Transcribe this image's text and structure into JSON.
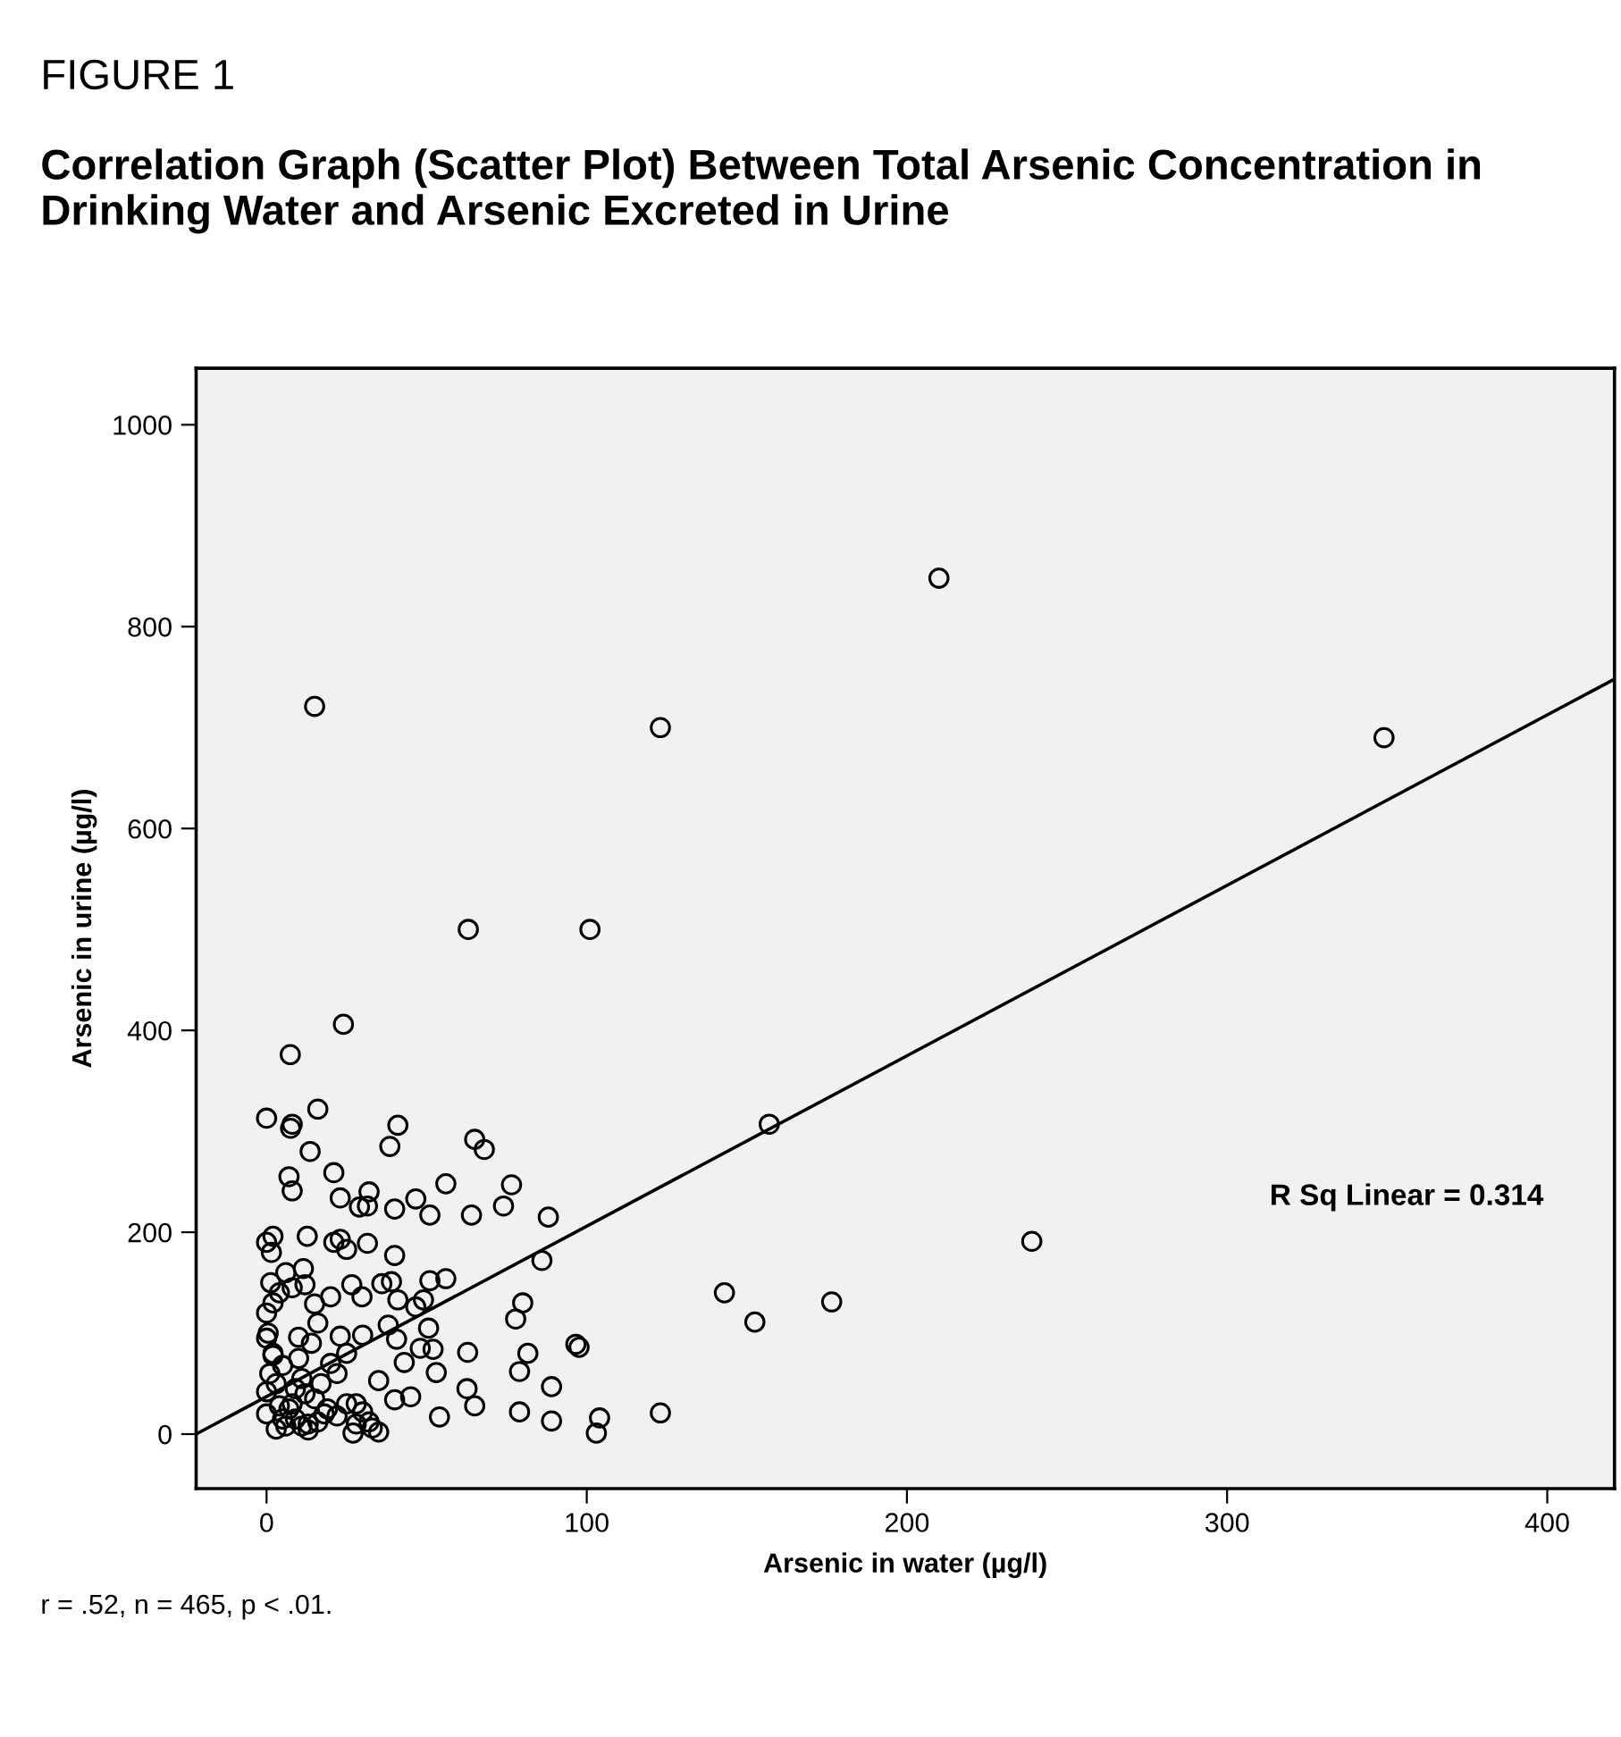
{
  "chart_data": {
    "type": "scatter",
    "title": "FIGURE 1",
    "subtitle": "Correlation Graph (Scatter Plot) Between Total Arsenic Concentration in Drinking Water and Arsenic Excreted in Urine",
    "xlabel": "Arsenic in water (µg/l)",
    "ylabel": "Arsenic in urine (µg/l)",
    "xlim": [
      -22,
      421
    ],
    "ylim": [
      -54,
      1056
    ],
    "xticks": [
      0,
      100,
      200,
      300,
      400
    ],
    "yticks": [
      0,
      200,
      400,
      600,
      800,
      1000
    ],
    "grid": false,
    "legend": false,
    "marker": "none",
    "annotations": [
      "R Sq Linear = 0.314",
      "r = .52, n = 465, p < .01."
    ],
    "series": [
      {
        "marker": "circle",
        "color": "#000000",
        "x": [
          15,
          63,
          101,
          123,
          210,
          349,
          239,
          24,
          7.4,
          0,
          8,
          7.5,
          16,
          13.6,
          41,
          38.5,
          65,
          68,
          7,
          8,
          21,
          23,
          29,
          31.5,
          32,
          40,
          46.6,
          51,
          56,
          64,
          74,
          76.5,
          88,
          86,
          157,
          143,
          152.5,
          176.5,
          123,
          104,
          103,
          89,
          89,
          79,
          79,
          81.6,
          80,
          77.8,
          96.6,
          97.6,
          65,
          62.6,
          62.8,
          54,
          53,
          56,
          51,
          50.6,
          52,
          48,
          49,
          46.6,
          41,
          40,
          39,
          36,
          40.6,
          38,
          43,
          45,
          40,
          35,
          27,
          35,
          32,
          28,
          30,
          31.5,
          29.8,
          26.6,
          25,
          23,
          21,
          23,
          20,
          15,
          16,
          12,
          11.5,
          12.7,
          10,
          2,
          0,
          1.5,
          1.3,
          2,
          0,
          0.5,
          4,
          0,
          2,
          6,
          8,
          25,
          22,
          20,
          17,
          14,
          12,
          10,
          8,
          18,
          15,
          13,
          11,
          9,
          7,
          5,
          3,
          1,
          0,
          0,
          4,
          3,
          6,
          2,
          5,
          9,
          11,
          13,
          16,
          19,
          22,
          25,
          28,
          30,
          33
        ],
        "values": [
          721,
          500,
          500,
          700,
          848,
          690,
          191,
          406,
          376,
          313,
          307,
          303,
          322,
          280,
          306,
          285,
          292,
          282,
          255,
          241,
          259,
          234,
          225,
          226,
          240,
          223,
          233,
          217,
          248,
          217,
          226,
          247,
          215,
          172,
          307,
          140,
          111,
          131,
          21,
          16,
          1,
          13,
          47,
          22,
          62,
          80,
          130,
          114,
          89,
          86,
          28,
          45,
          81,
          17,
          61,
          154,
          152,
          105,
          84,
          85,
          133,
          126,
          133,
          177,
          151,
          149,
          94,
          108,
          71,
          37,
          34,
          2,
          1,
          53,
          12,
          30,
          98,
          189,
          136,
          148,
          183,
          193,
          190,
          97,
          136,
          129,
          110,
          148,
          164,
          196,
          96,
          196,
          190,
          180,
          150,
          130,
          120,
          100,
          140,
          95,
          80,
          160,
          145,
          80,
          60,
          70,
          50,
          90,
          40,
          75,
          30,
          20,
          35,
          10,
          55,
          45,
          25,
          15,
          5,
          60,
          20,
          42,
          28,
          50,
          8,
          78,
          68,
          15,
          8,
          4,
          12,
          25,
          18,
          30,
          10,
          22,
          6
        ]
      },
      {
        "type": "line",
        "color": "#000000",
        "line_style": "solid",
        "x": [
          -22,
          421
        ],
        "values": [
          0,
          748
        ]
      }
    ]
  }
}
